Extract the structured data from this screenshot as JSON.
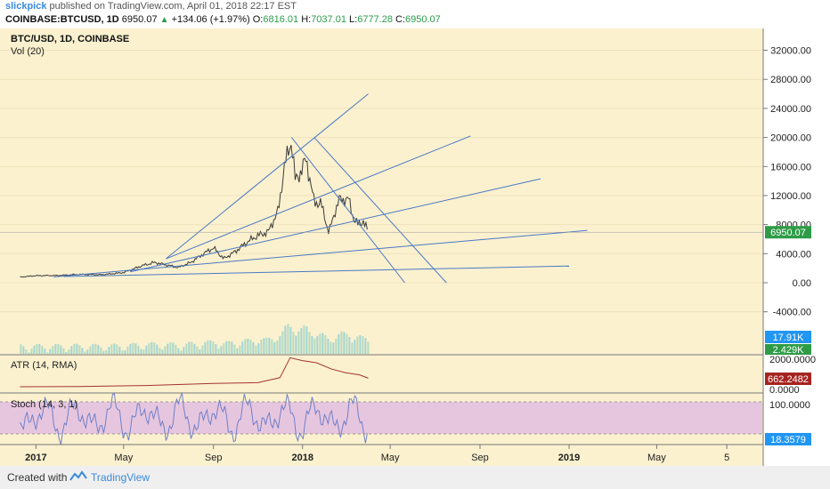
{
  "header": {
    "username": "slickpick",
    "published_text": "published on TradingView.com, April 01, 2018 22:17 EST",
    "symbol": "COINBASE:BTCUSD, 1D",
    "last": "6950.07",
    "change": "+134.06 (+1.97%)",
    "o_label": "O:",
    "open": "6816.01",
    "h_label": "H:",
    "high": "7037.01",
    "l_label": "L:",
    "low": "6777.28",
    "c_label": "C:",
    "close": "6950.07"
  },
  "footer": {
    "created_with": "Created with",
    "brand": "TradingView"
  },
  "colors": {
    "background": "#fbf1cf",
    "line": "#4a79c4",
    "price": "#3a3a3a",
    "last_price_badge": "#2e9c47",
    "volume": "#88c9d8",
    "atr": "#a33333",
    "stoch_band": "#e6c6df",
    "stoch_line": "#6f7fc8",
    "axis_blue_badge": "#2196f3"
  },
  "chart_data": [
    {
      "type": "line",
      "title": "BTC/USD, 1D, COINBASE",
      "subtitle": "Vol (20)",
      "x_ticks": [
        "2017",
        "May",
        "Sep",
        "2018",
        "May",
        "Sep",
        "2019",
        "May",
        "5"
      ],
      "y_ticks": [
        "32000.00",
        "28000.00",
        "24000.00",
        "20000.00",
        "16000.00",
        "12000.00",
        "8000.00",
        "4000.00",
        "0.00",
        "-4000.00"
      ],
      "ylim": [
        -10000,
        34000
      ],
      "last_price_label": "6950.07",
      "volume_labels": [
        "17.91K",
        "2.429K"
      ],
      "series": [
        {
          "x": [
            "2016-12-10",
            "2017-01-01",
            "2017-02-01",
            "2017-03-01",
            "2017-04-01",
            "2017-05-01",
            "2017-05-25",
            "2017-06-12",
            "2017-07-15",
            "2017-08-01",
            "2017-08-20",
            "2017-09-01",
            "2017-09-15",
            "2017-10-01",
            "2017-10-20",
            "2017-11-01",
            "2017-11-15",
            "2017-11-29",
            "2017-12-07",
            "2017-12-17",
            "2017-12-22",
            "2017-12-28",
            "2018-01-06",
            "2018-01-17",
            "2018-01-26",
            "2018-02-06",
            "2018-02-15",
            "2018-02-20",
            "2018-03-05",
            "2018-03-12",
            "2018-03-18",
            "2018-03-25",
            "2018-04-01"
          ],
          "values": [
            780,
            970,
            1000,
            1150,
            1100,
            1400,
            2300,
            2800,
            2100,
            2800,
            4100,
            4800,
            3300,
            4300,
            5800,
            6500,
            7000,
            10000,
            16000,
            19600,
            14000,
            15000,
            17000,
            11000,
            11000,
            6900,
            10000,
            11400,
            11500,
            8800,
            8000,
            8500,
            6950
          ]
        }
      ],
      "trendlines": [
        {
          "from": [
            "2017-06-28",
            3300
          ],
          "to": [
            "2018-04-01",
            26000
          ]
        },
        {
          "from": [
            "2017-06-28",
            3300
          ],
          "to": [
            "2018-08-19",
            20200
          ]
        },
        {
          "from": [
            "2017-05-10",
            1500
          ],
          "to": [
            "2018-11-23",
            14300
          ]
        },
        {
          "from": [
            "2017-01-25",
            800
          ],
          "to": [
            "2019-01-26",
            7200
          ]
        },
        {
          "from": [
            "2017-02-08",
            850
          ],
          "to": [
            "2019-01-01",
            2300
          ]
        },
        {
          "from": [
            "2017-12-17",
            20000
          ],
          "to": [
            "2018-05-21",
            0
          ]
        },
        {
          "from": [
            "2018-01-17",
            20000
          ],
          "to": [
            "2018-07-17",
            0
          ]
        }
      ]
    },
    {
      "type": "line",
      "title": "ATR (14, RMA)",
      "y_ticks": [
        "2000.0000",
        "0.0000"
      ],
      "last_value_label": "662.2482",
      "series": [
        {
          "x": [
            "2016-12-10",
            "2017-03-01",
            "2017-06-01",
            "2017-09-01",
            "2017-11-01",
            "2017-12-01",
            "2017-12-15",
            "2018-01-01",
            "2018-01-20",
            "2018-02-10",
            "2018-03-01",
            "2018-03-20",
            "2018-04-01"
          ],
          "values": [
            60,
            80,
            150,
            300,
            350,
            700,
            2100,
            1900,
            1750,
            1300,
            1050,
            900,
            662
          ]
        }
      ]
    },
    {
      "type": "line",
      "title": "Stoch (14, 3, 1)",
      "y_ticks": [
        "100.0000"
      ],
      "last_value_label": "18.3579",
      "band": [
        20,
        80
      ]
    }
  ]
}
